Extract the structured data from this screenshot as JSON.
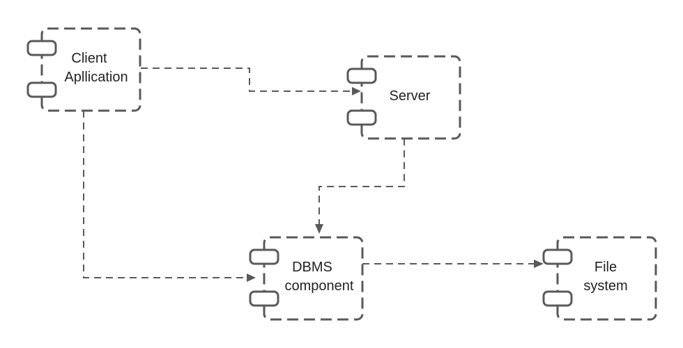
{
  "diagram": {
    "type": "uml-component-diagram",
    "components": {
      "client": {
        "lines": [
          "Client",
          "Apllication"
        ]
      },
      "server": {
        "lines": [
          "Server"
        ]
      },
      "dbms": {
        "lines": [
          "DBMS",
          "component"
        ]
      },
      "filesystem": {
        "lines": [
          "File",
          "system"
        ]
      }
    },
    "edges": [
      {
        "from": "client",
        "to": "server",
        "style": "dashed"
      },
      {
        "from": "client",
        "to": "dbms",
        "style": "dashed"
      },
      {
        "from": "server",
        "to": "dbms",
        "style": "dashed"
      },
      {
        "from": "dbms",
        "to": "filesystem",
        "style": "dashed"
      }
    ],
    "colors": {
      "stroke": "#595959",
      "text": "#222222",
      "background": "#ffffff"
    }
  }
}
